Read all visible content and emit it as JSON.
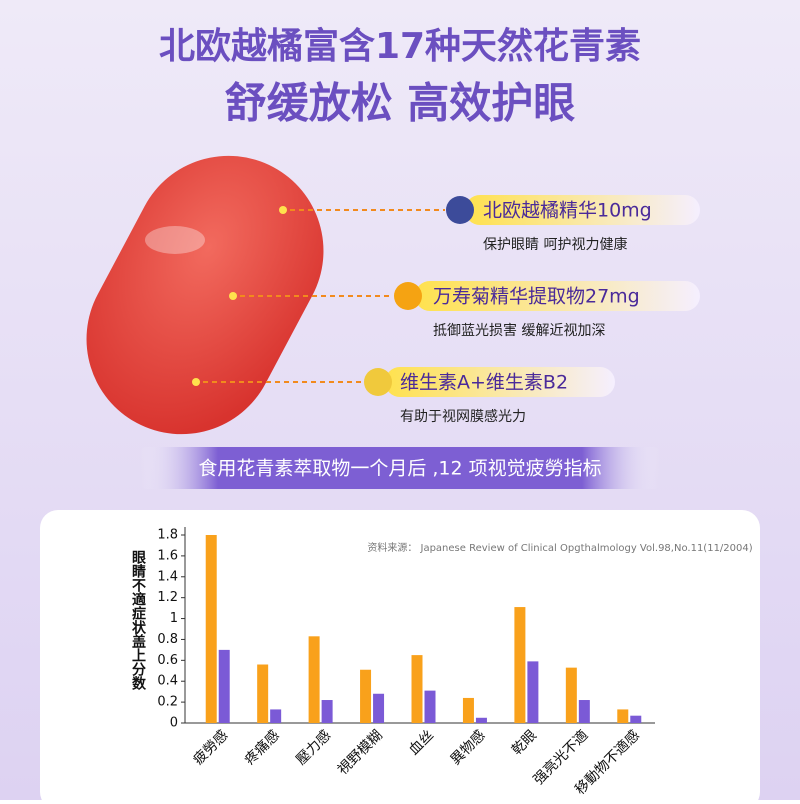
{
  "header": {
    "title": "北欧越橘富含17种天然花青素",
    "subtitle": "舒缓放松 高效护眼"
  },
  "callouts": [
    {
      "label": "北欧越橘精华10mg",
      "desc": "保护眼睛 呵护视力健康"
    },
    {
      "label": "万寿菊精华提取物27mg",
      "desc": "抵御蓝光损害 缓解近视加深"
    },
    {
      "label": "维生素A+维生素B2",
      "desc": "有助于视网膜感光力"
    }
  ],
  "banner": "食用花青素萃取物一个月后 ,12 项视觉疲勞指标",
  "chart_data": {
    "type": "bar",
    "y_label": "眼睛不適症状盖上分数",
    "source": "资料来源： Japanese Review of Clinical Opgthalmology Vol.98,No.11(11/2004)",
    "categories": [
      "疲勞感",
      "疼痛感",
      "壓力感",
      "視野模糊",
      "血丝",
      "異物感",
      "乾眼",
      "强亮光不適",
      "移動物不適感"
    ],
    "series": [
      {
        "color": "#f9a11b",
        "values": [
          1.8,
          0.56,
          0.83,
          0.51,
          0.65,
          0.24,
          1.11,
          0.53,
          0.13
        ]
      },
      {
        "color": "#7b5ad6",
        "values": [
          0.7,
          0.13,
          0.22,
          0.28,
          0.31,
          0.05,
          0.59,
          0.22,
          0.07
        ]
      }
    ],
    "ylim": [
      0,
      1.8
    ],
    "yticks": [
      0,
      0.2,
      0.4,
      0.6,
      0.8,
      1,
      1.2,
      1.4,
      1.6,
      1.8
    ]
  }
}
